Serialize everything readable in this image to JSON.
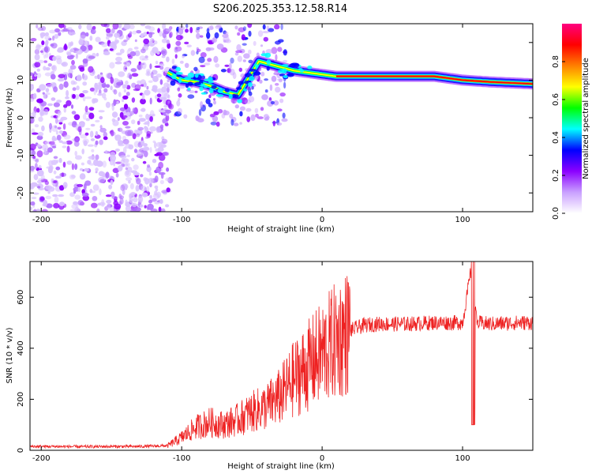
{
  "chart_data": [
    {
      "type": "heatmap",
      "title": "S206.2025.353.12.58.R14",
      "xlabel": "Height of straight line (km)",
      "ylabel": "Frequency (Hz)",
      "xlim": [
        -208,
        150
      ],
      "ylim": [
        -25,
        25
      ],
      "x_ticks": [
        -200,
        -100,
        0,
        100
      ],
      "y_ticks": [
        20,
        10,
        0,
        -10,
        -20
      ],
      "colorbar": {
        "label": "Normalized spectral amplitude",
        "range": [
          0,
          1
        ],
        "ticks": [
          0.0,
          0.2,
          0.4,
          0.6,
          0.8
        ],
        "tick_labels": [
          "0.0",
          "0.2",
          "0.4",
          "0.6",
          "0.8"
        ],
        "colormap": [
          "#ffffff",
          "#c9a0ff",
          "#8b00ff",
          "#0000ff",
          "#00ffff",
          "#00ff00",
          "#ffff00",
          "#ff8000",
          "#ff0000",
          "#ff0080"
        ]
      },
      "ridge": {
        "description_points": [
          {
            "x": -110,
            "y": 12
          },
          {
            "x": -100,
            "y": 10
          },
          {
            "x": -90,
            "y": 9.5
          },
          {
            "x": -80,
            "y": 8.5
          },
          {
            "x": -70,
            "y": 7
          },
          {
            "x": -60,
            "y": 6
          },
          {
            "x": -45,
            "y": 15
          },
          {
            "x": -35,
            "y": 14
          },
          {
            "x": -20,
            "y": 12.5
          },
          {
            "x": -10,
            "y": 12
          },
          {
            "x": 0,
            "y": 11.5
          },
          {
            "x": 10,
            "y": 11
          },
          {
            "x": 40,
            "y": 11
          },
          {
            "x": 80,
            "y": 11
          },
          {
            "x": 90,
            "y": 10.5
          },
          {
            "x": 100,
            "y": 10
          },
          {
            "x": 120,
            "y": 9.5
          },
          {
            "x": 150,
            "y": 9
          }
        ],
        "color_high": "#ff0000"
      },
      "noise_region": {
        "x_from": -208,
        "x_to": -108,
        "y_from": -25,
        "y_to": 25
      }
    },
    {
      "type": "line",
      "xlabel": "Height of straight line (km)",
      "ylabel": "SNR (10 * v/v)",
      "xlim": [
        -208,
        150
      ],
      "ylim": [
        0,
        740
      ],
      "x_ticks": [
        -200,
        -100,
        0,
        100
      ],
      "y_ticks": [
        0,
        200,
        400,
        600
      ],
      "color": "#ee2222",
      "series": [
        {
          "x": [
            -208,
            -190,
            -170,
            -150,
            -130,
            -110,
            -100,
            -90,
            -80,
            -70,
            -60,
            -50,
            -40,
            -30,
            -20,
            -10,
            0,
            10,
            20,
            30,
            40,
            60,
            80,
            100,
            107,
            110,
            120,
            140,
            150
          ],
          "y": [
            15,
            15,
            14,
            15,
            15,
            18,
            50,
            90,
            110,
            100,
            120,
            150,
            170,
            210,
            280,
            330,
            380,
            430,
            470,
            490,
            495,
            495,
            500,
            500,
            740,
            500,
            495,
            500,
            500
          ]
        }
      ]
    }
  ]
}
